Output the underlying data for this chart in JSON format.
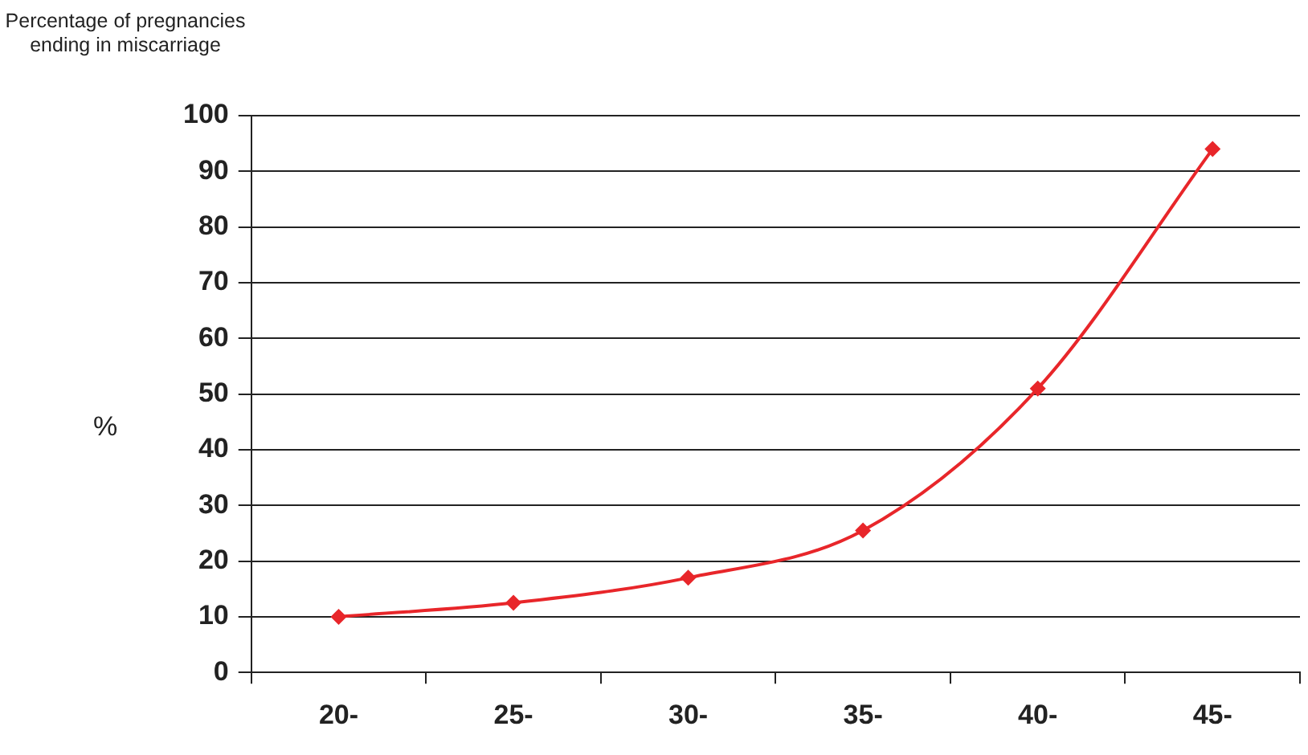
{
  "chart_data": {
    "type": "line",
    "title": "Percentage of pregnancies ending in miscarriage",
    "ylabel": "%",
    "categories": [
      "20-",
      "25-",
      "30-",
      "35-",
      "40-",
      "45-"
    ],
    "series": [
      {
        "color": "#e8262a",
        "values": [
          10,
          12.5,
          17,
          25.5,
          51,
          94
        ]
      }
    ],
    "ylim": [
      0,
      100
    ],
    "yticks": [
      0,
      10,
      20,
      30,
      40,
      50,
      60,
      70,
      80,
      90,
      100
    ],
    "grid": "y",
    "legend": false,
    "marker": "diamond",
    "line_style": "solid"
  }
}
